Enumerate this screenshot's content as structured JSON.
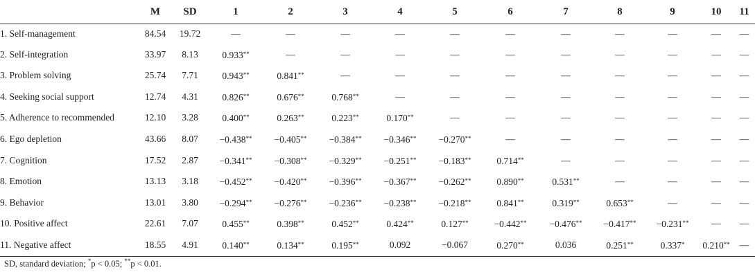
{
  "table": {
    "headers": [
      "",
      "M",
      "SD",
      "1",
      "2",
      "3",
      "4",
      "5",
      "6",
      "7",
      "8",
      "9",
      "10",
      "11"
    ],
    "rows": [
      {
        "label": "1. Self-management",
        "m": "84.54",
        "sd": "19.72",
        "cells": [
          "—",
          "—",
          "—",
          "—",
          "—",
          "—",
          "—",
          "—",
          "—",
          "—",
          "—"
        ]
      },
      {
        "label": "2. Self-integration",
        "m": "33.97",
        "sd": "8.13",
        "cells": [
          "0.933**",
          "—",
          "—",
          "—",
          "—",
          "—",
          "—",
          "—",
          "—",
          "—",
          "—"
        ]
      },
      {
        "label": "3. Problem solving",
        "m": "25.74",
        "sd": "7.71",
        "cells": [
          "0.943**",
          "0.841**",
          "—",
          "—",
          "—",
          "—",
          "—",
          "—",
          "—",
          "—",
          "—"
        ]
      },
      {
        "label": "4. Seeking social support",
        "m": "12.74",
        "sd": "4.31",
        "cells": [
          "0.826**",
          "0.676**",
          "0.768**",
          "—",
          "—",
          "—",
          "—",
          "—",
          "—",
          "—",
          "—"
        ]
      },
      {
        "label": "5. Adherence to recommended",
        "m": "12.10",
        "sd": "3.28",
        "cells": [
          "0.400**",
          "0.263**",
          "0.223**",
          "0.170**",
          "—",
          "—",
          "—",
          "—",
          "—",
          "—",
          "—"
        ]
      },
      {
        "label": "6. Ego depletion",
        "m": "43.66",
        "sd": "8.07",
        "cells": [
          "−0.438**",
          "−0.405**",
          "−0.384**",
          "−0.346**",
          "−0.270**",
          "—",
          "—",
          "—",
          "—",
          "—",
          "—"
        ]
      },
      {
        "label": "7. Cognition",
        "m": "17.52",
        "sd": "2.87",
        "cells": [
          "−0.341**",
          "−0.308**",
          "−0.329**",
          "−0.251**",
          "−0.183**",
          "0.714**",
          "—",
          "—",
          "—",
          "—",
          "—"
        ]
      },
      {
        "label": "8. Emotion",
        "m": "13.13",
        "sd": "3.18",
        "cells": [
          "−0.452**",
          "−0.420**",
          "−0.396**",
          "−0.367**",
          "−0.262**",
          "0.890**",
          "0.531**",
          "—",
          "—",
          "—",
          "—"
        ]
      },
      {
        "label": "9. Behavior",
        "m": "13.01",
        "sd": "3.80",
        "cells": [
          "−0.294**",
          "−0.276**",
          "−0.236**",
          "−0.238**",
          "−0.218**",
          "0.841**",
          "0.319**",
          "0.653**",
          "—",
          "—",
          "—"
        ]
      },
      {
        "label": "10. Positive affect",
        "m": "22.61",
        "sd": "7.07",
        "cells": [
          "0.455**",
          "0.398**",
          "0.452**",
          "0.424**",
          "0.127**",
          "−0.442**",
          "−0.476**",
          "−0.417**",
          "−0.231**",
          "—",
          "—"
        ]
      },
      {
        "label": "11. Negative affect",
        "m": "18.55",
        "sd": "4.91",
        "cells": [
          "0.140**",
          "0.134**",
          "0.195**",
          "0.092",
          "−0.067",
          "0.270**",
          "0.036",
          "0.251**",
          "0.337*",
          "0.210**",
          "—"
        ]
      }
    ]
  },
  "footnote": {
    "prefix": "SD, standard deviation; ",
    "p05_mark": "*",
    "p05_text": "p < 0.05; ",
    "p01_mark": "**",
    "p01_text": "p < 0.01."
  }
}
